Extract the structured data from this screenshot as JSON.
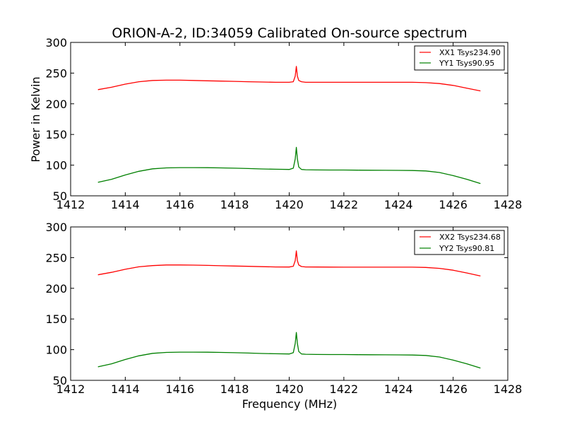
{
  "page": {
    "title": "ORION-A-2, ID:34059 Calibrated On-source spectrum",
    "ylabel": "Power in Kelvin",
    "xlabel": "Frequency (MHz)"
  },
  "colors": {
    "xx": "#ff0000",
    "yy": "#008000",
    "axes": "#000000",
    "background": "#ffffff"
  },
  "chart_data": [
    {
      "type": "line",
      "title": "ORION-A-2, ID:34059 Calibrated On-source spectrum",
      "xlabel": "",
      "ylabel": "Power in Kelvin",
      "xlim": [
        1412,
        1428
      ],
      "ylim": [
        50,
        300
      ],
      "xticks": [
        1412,
        1414,
        1416,
        1418,
        1420,
        1422,
        1424,
        1426,
        1428
      ],
      "yticks": [
        50,
        100,
        150,
        200,
        250,
        300
      ],
      "grid": false,
      "legend_position": "top-right",
      "series": [
        {
          "name": "XX1 Tsys234.90",
          "color": "#ff0000",
          "x": [
            1413.0,
            1413.5,
            1414.0,
            1414.5,
            1415.0,
            1415.5,
            1416.0,
            1416.5,
            1417.0,
            1417.5,
            1418.0,
            1418.5,
            1419.0,
            1419.5,
            1420.0,
            1420.15,
            1420.22,
            1420.26,
            1420.3,
            1420.35,
            1420.45,
            1420.6,
            1421.0,
            1421.5,
            1422.0,
            1422.5,
            1423.0,
            1423.5,
            1424.0,
            1424.5,
            1425.0,
            1425.5,
            1426.0,
            1426.5,
            1427.0
          ],
          "y": [
            223,
            227,
            232,
            236,
            238,
            238.5,
            238.5,
            238,
            237.5,
            237,
            236.5,
            236,
            235.5,
            235,
            235,
            236,
            245,
            261,
            245,
            238,
            236,
            235,
            235,
            235,
            235,
            235,
            235,
            235,
            235,
            235,
            234.5,
            233,
            230,
            225.5,
            221
          ]
        },
        {
          "name": "YY1 Tsys90.95",
          "color": "#008000",
          "x": [
            1413.0,
            1413.5,
            1414.0,
            1414.5,
            1415.0,
            1415.5,
            1416.0,
            1416.5,
            1417.0,
            1417.5,
            1418.0,
            1418.5,
            1419.0,
            1419.5,
            1420.0,
            1420.15,
            1420.22,
            1420.26,
            1420.3,
            1420.35,
            1420.45,
            1420.6,
            1421.0,
            1421.5,
            1422.0,
            1422.5,
            1423.0,
            1423.5,
            1424.0,
            1424.5,
            1425.0,
            1425.5,
            1426.0,
            1426.5,
            1427.0
          ],
          "y": [
            72,
            77,
            84,
            90,
            94,
            95.5,
            96,
            96,
            95.8,
            95.5,
            95,
            94.5,
            93.8,
            93.3,
            93,
            95,
            110,
            129,
            110,
            97,
            93,
            92.5,
            92.2,
            92,
            92,
            91.8,
            91.7,
            91.6,
            91.5,
            91.3,
            90.5,
            88,
            83,
            77,
            70
          ]
        }
      ]
    },
    {
      "type": "line",
      "title": "",
      "xlabel": "Frequency (MHz)",
      "ylabel": "",
      "xlim": [
        1412,
        1428
      ],
      "ylim": [
        50,
        300
      ],
      "xticks": [
        1412,
        1414,
        1416,
        1418,
        1420,
        1422,
        1424,
        1426,
        1428
      ],
      "yticks": [
        50,
        100,
        150,
        200,
        250,
        300
      ],
      "grid": false,
      "legend_position": "top-right",
      "series": [
        {
          "name": "XX2 Tsys234.68",
          "color": "#ff0000",
          "x": [
            1413.0,
            1413.5,
            1414.0,
            1414.5,
            1415.0,
            1415.5,
            1416.0,
            1416.5,
            1417.0,
            1417.5,
            1418.0,
            1418.5,
            1419.0,
            1419.5,
            1420.0,
            1420.15,
            1420.22,
            1420.26,
            1420.3,
            1420.35,
            1420.45,
            1420.6,
            1421.0,
            1421.5,
            1422.0,
            1422.5,
            1423.0,
            1423.5,
            1424.0,
            1424.5,
            1425.0,
            1425.5,
            1426.0,
            1426.5,
            1427.0
          ],
          "y": [
            222,
            226,
            231,
            235,
            237,
            238,
            238,
            237.8,
            237.3,
            236.8,
            236.3,
            235.8,
            235.2,
            234.8,
            234.7,
            236,
            245,
            261,
            245,
            238,
            235.5,
            234.8,
            234.7,
            234.6,
            234.5,
            234.5,
            234.5,
            234.5,
            234.5,
            234.5,
            234,
            232.5,
            229.5,
            225,
            220
          ]
        },
        {
          "name": "YY2 Tsys90.81",
          "color": "#008000",
          "x": [
            1413.0,
            1413.5,
            1414.0,
            1414.5,
            1415.0,
            1415.5,
            1416.0,
            1416.5,
            1417.0,
            1417.5,
            1418.0,
            1418.5,
            1419.0,
            1419.5,
            1420.0,
            1420.15,
            1420.22,
            1420.26,
            1420.3,
            1420.35,
            1420.45,
            1420.6,
            1421.0,
            1421.5,
            1422.0,
            1422.5,
            1423.0,
            1423.5,
            1424.0,
            1424.5,
            1425.0,
            1425.5,
            1426.0,
            1426.5,
            1427.0
          ],
          "y": [
            72,
            77,
            84,
            90,
            94,
            95.5,
            96,
            96,
            95.8,
            95.5,
            95,
            94.5,
            93.8,
            93.3,
            93,
            95,
            110,
            128,
            110,
            97,
            93,
            92.5,
            92.2,
            92,
            92,
            91.8,
            91.7,
            91.6,
            91.5,
            91.3,
            90.5,
            88,
            83,
            77,
            70
          ]
        }
      ]
    }
  ]
}
